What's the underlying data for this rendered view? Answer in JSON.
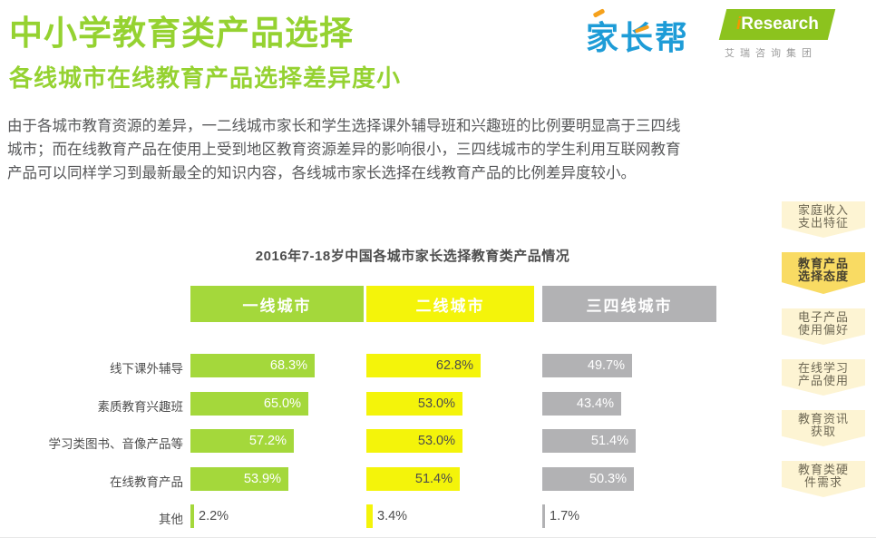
{
  "page": {
    "title": "中小学教育类产品选择",
    "subtitle": "各线城市在线教育产品选择差异度小",
    "body_lines": [
      "由于各城市教育资源的差异，一二线城市家长和学生选择课外辅导班和兴趣班的比例要明显高于三四线",
      "城市；而在线教育产品在使用上受到地区教育资源差异的影响很小，三四线城市的学生利用互联网教育",
      "产品可以同样学习到最新最全的知识内容，各线城市家长选择在线教育产品的比例差异度较小。"
    ]
  },
  "logos": {
    "jiazhangbang": "家长帮",
    "iresearch_i": "i",
    "iresearch_rest": "Research",
    "iresearch_sub": "艾瑞咨询集团"
  },
  "sidebar": {
    "items": [
      {
        "label_line1": "家庭收入",
        "label_line2": "支出特征",
        "active": false
      },
      {
        "label_line1": "教育产品",
        "label_line2": "选择态度",
        "active": true
      },
      {
        "label_line1": "电子产品",
        "label_line2": "使用偏好",
        "active": false
      },
      {
        "label_line1": "在线学习",
        "label_line2": "产品使用",
        "active": false
      },
      {
        "label_line1": "教育资讯",
        "label_line2": "获取",
        "active": false
      },
      {
        "label_line1": "教育类硬",
        "label_line2": "件需求",
        "active": false
      }
    ]
  },
  "chart_data": {
    "type": "bar",
    "orientation": "horizontal",
    "title": "2016年7-18岁中国各城市家长选择教育类产品情况",
    "categories": [
      "线下课外辅导",
      "素质教育兴趣班",
      "学习类图书、音像产品等",
      "在线教育产品",
      "其他"
    ],
    "series": [
      {
        "name": "一线城市",
        "color": "#a4d83b",
        "text_color": "#ffffff",
        "values": [
          68.3,
          65.0,
          57.2,
          53.9,
          2.2
        ]
      },
      {
        "name": "二线城市",
        "color": "#f4f40a",
        "text_color": "#4d4d4d",
        "values": [
          62.8,
          53.0,
          53.0,
          51.4,
          3.4
        ]
      },
      {
        "name": "三四线城市",
        "color": "#b2b2b4",
        "text_color": "#ffffff",
        "values": [
          49.7,
          43.4,
          51.4,
          50.3,
          1.7
        ]
      }
    ],
    "value_suffix": "%",
    "xlim": [
      0,
      100
    ],
    "grid": false,
    "legend_position": "column-headers"
  },
  "colors": {
    "title_green": "#95d231",
    "bar_green": "#a4d83b",
    "bar_yellow": "#f4f40a",
    "bar_gray": "#b2b2b4",
    "sidebar_tab": "#fdf4d3",
    "sidebar_tab_active": "#f9db63",
    "logo_blue": "#1e9cd7",
    "logo_orange": "#f5a11c",
    "logo_green": "#8cc31e",
    "body_text": "#57585a"
  }
}
